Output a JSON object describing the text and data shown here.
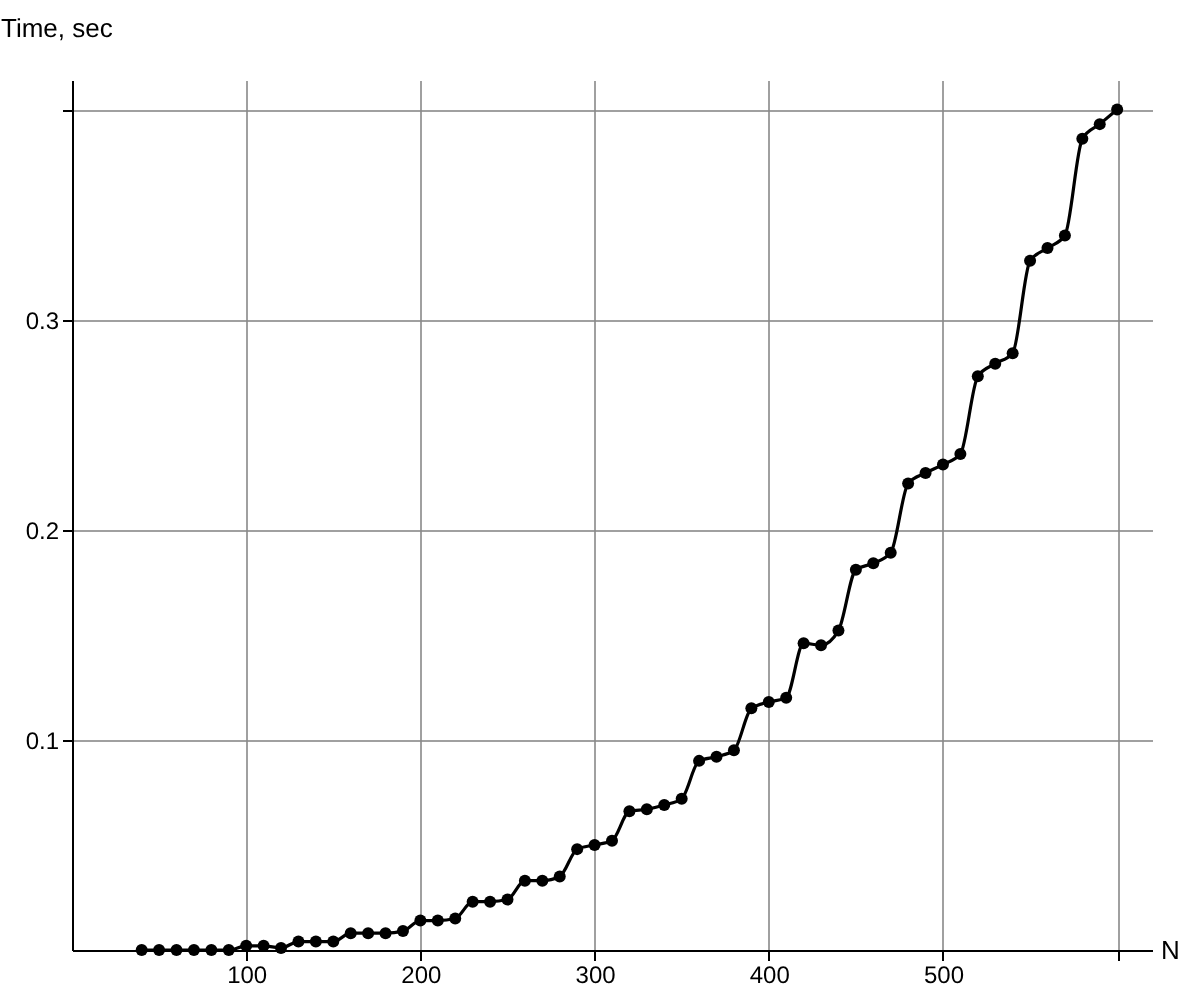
{
  "chart_data": {
    "type": "line",
    "xlabel": "N",
    "ylabel": "Time, sec",
    "x": [
      40,
      50,
      60,
      70,
      80,
      90,
      100,
      110,
      120,
      130,
      140,
      150,
      160,
      170,
      180,
      190,
      200,
      210,
      220,
      230,
      240,
      250,
      260,
      270,
      280,
      290,
      300,
      310,
      320,
      330,
      340,
      350,
      360,
      370,
      380,
      390,
      400,
      410,
      420,
      430,
      440,
      450,
      460,
      470,
      480,
      490,
      500,
      510,
      520,
      530,
      540,
      550,
      560,
      570,
      580,
      590,
      600
    ],
    "series": [
      {
        "color": "#000000",
        "values": [
          0.0,
          0.0,
          0.0,
          0.0,
          0.0,
          0.0,
          0.002,
          0.002,
          0.001,
          0.004,
          0.004,
          0.004,
          0.008,
          0.008,
          0.008,
          0.009,
          0.014,
          0.014,
          0.015,
          0.023,
          0.023,
          0.024,
          0.033,
          0.033,
          0.035,
          0.048,
          0.05,
          0.052,
          0.066,
          0.067,
          0.069,
          0.072,
          0.09,
          0.092,
          0.095,
          0.115,
          0.118,
          0.12,
          0.146,
          0.145,
          0.152,
          0.181,
          0.184,
          0.189,
          0.222,
          0.227,
          0.231,
          0.236,
          0.273,
          0.279,
          0.284,
          0.328,
          0.334,
          0.34,
          0.386,
          0.393,
          0.4
        ]
      }
    ],
    "xlim": [
      0,
      620
    ],
    "ylim": [
      0,
      0.414
    ],
    "xticks": [
      100,
      200,
      300,
      400,
      500,
      {
        "value": 600,
        "label": null
      }
    ],
    "yticks": [
      0.1,
      0.2,
      0.3,
      {
        "value": 0.4,
        "label": null
      }
    ],
    "grid": true,
    "marker": "circle",
    "line_style": "solid",
    "legend": false
  }
}
